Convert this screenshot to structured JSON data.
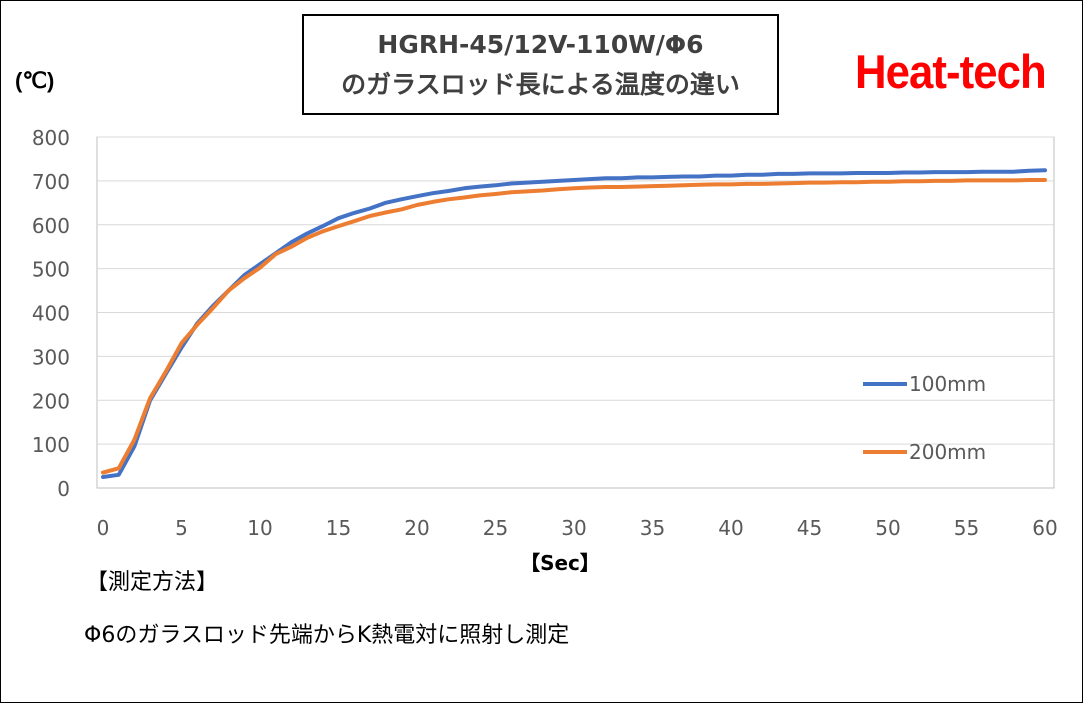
{
  "title": {
    "line1": "HGRH-45/12V-110W/Φ6",
    "line2": "のガラスロッド長による温度の違い"
  },
  "brand": "Heat-tech",
  "unit_label": "(℃)",
  "method": {
    "heading": "【測定方法】",
    "text": "Φ6のガラスロッド先端からK熱電対に照射し測定"
  },
  "colors": {
    "series_100mm": "#4472c4",
    "series_200mm": "#ed7d31",
    "brand": "#ff0000",
    "grid": "#d9d9d9"
  },
  "chart_data": {
    "type": "line",
    "title": "HGRH-45/12V-110W/Φ6 のガラスロッド長による温度の違い",
    "xlabel": "【Sec】",
    "ylabel": "(℃)",
    "xlim": [
      0,
      60
    ],
    "ylim": [
      0,
      800
    ],
    "xticks": [
      0,
      5,
      10,
      15,
      20,
      25,
      30,
      35,
      40,
      45,
      50,
      55,
      60
    ],
    "yticks": [
      0,
      100,
      200,
      300,
      400,
      500,
      600,
      700,
      800
    ],
    "grid": true,
    "legend": "right",
    "x": [
      0,
      1,
      2,
      3,
      4,
      5,
      6,
      7,
      8,
      9,
      10,
      11,
      12,
      13,
      14,
      15,
      16,
      17,
      18,
      19,
      20,
      21,
      22,
      23,
      24,
      25,
      26,
      27,
      28,
      29,
      30,
      31,
      32,
      33,
      34,
      35,
      36,
      37,
      38,
      39,
      40,
      41,
      42,
      43,
      44,
      45,
      46,
      47,
      48,
      49,
      50,
      51,
      52,
      53,
      54,
      55,
      56,
      57,
      58,
      59,
      60
    ],
    "series": [
      {
        "name": "100mm",
        "values": [
          25,
          30,
          95,
          200,
          260,
          320,
          375,
          415,
          450,
          485,
          510,
          535,
          560,
          580,
          597,
          615,
          627,
          637,
          650,
          658,
          665,
          672,
          677,
          683,
          687,
          690,
          694,
          696,
          698,
          700,
          702,
          704,
          706,
          706,
          708,
          708,
          709,
          710,
          710,
          712,
          712,
          714,
          714,
          716,
          716,
          717,
          717,
          717,
          718,
          718,
          718,
          719,
          719,
          720,
          720,
          720,
          721,
          721,
          721,
          723,
          724
        ]
      },
      {
        "name": "200mm",
        "values": [
          35,
          45,
          110,
          205,
          265,
          330,
          372,
          410,
          450,
          478,
          502,
          533,
          550,
          570,
          585,
          597,
          608,
          620,
          628,
          635,
          645,
          652,
          658,
          662,
          667,
          670,
          674,
          676,
          678,
          681,
          683,
          685,
          686,
          686,
          687,
          688,
          689,
          690,
          691,
          692,
          692,
          693,
          693,
          694,
          695,
          696,
          696,
          697,
          697,
          698,
          698,
          699,
          699,
          700,
          700,
          701,
          701,
          701,
          701,
          702,
          702
        ]
      }
    ]
  }
}
